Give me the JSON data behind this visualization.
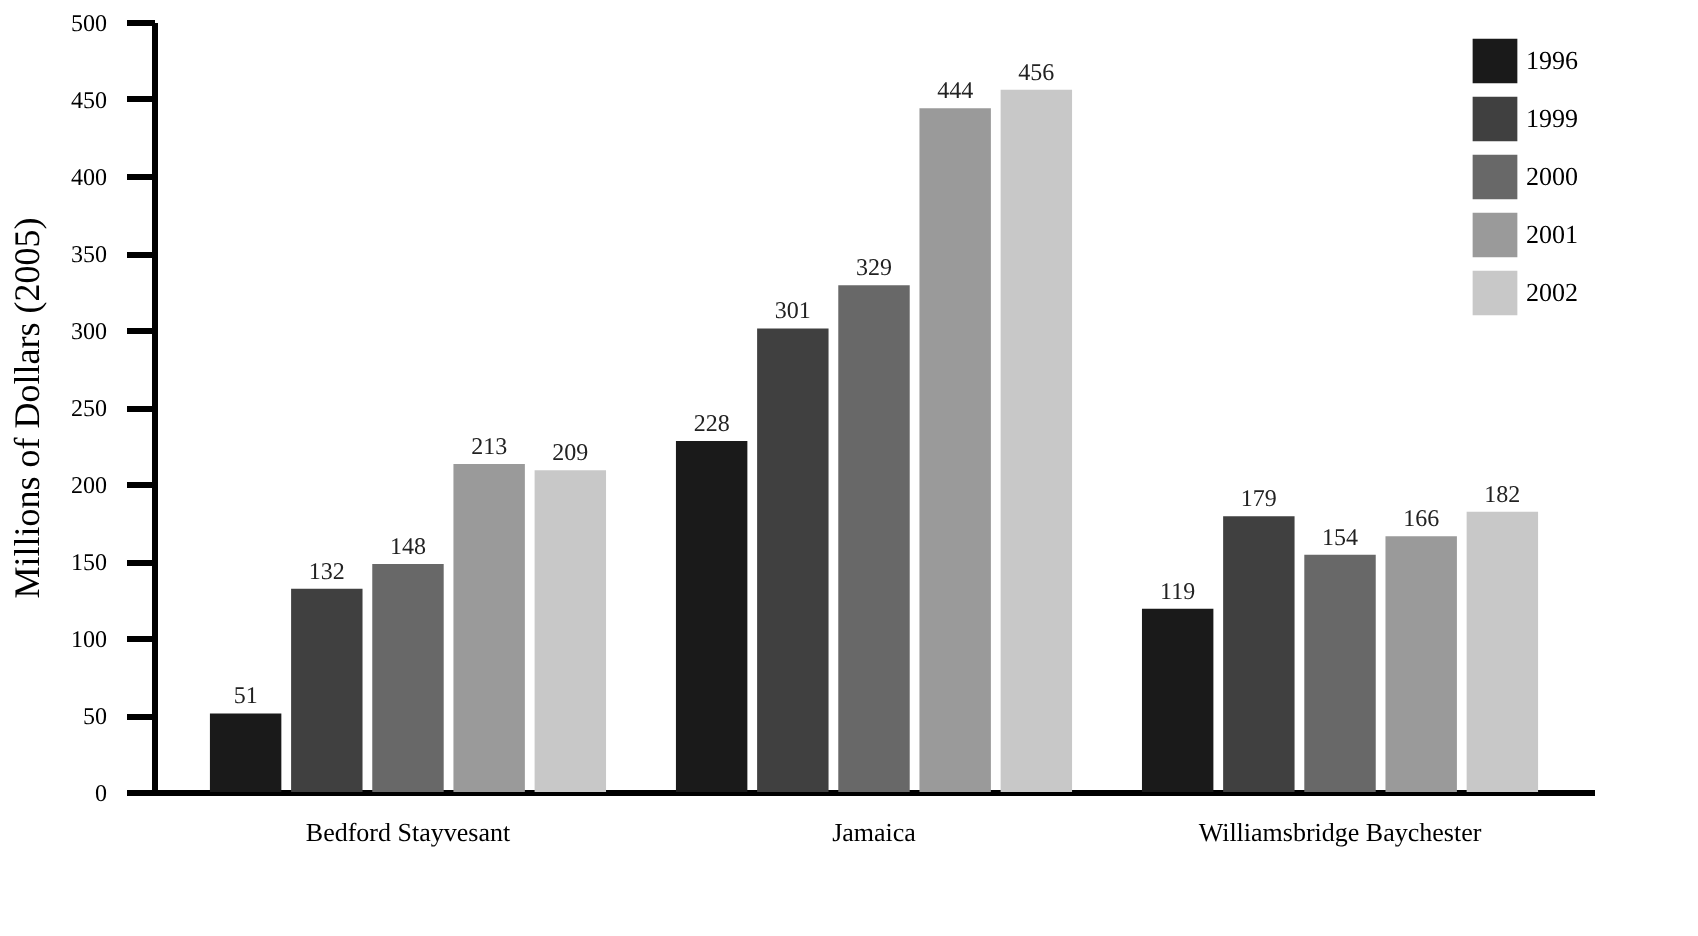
{
  "chart_data": {
    "type": "bar",
    "ylabel": "Millions of Dollars (2005)",
    "categories": [
      "Bedford Stayvesant",
      "Jamaica",
      "Williamsbridge Baychester"
    ],
    "series": [
      {
        "name": "1996",
        "color": "#1a1a1a",
        "values": [
          51,
          228,
          119
        ]
      },
      {
        "name": "1999",
        "color": "#404040",
        "values": [
          132,
          301,
          179
        ]
      },
      {
        "name": "2000",
        "color": "#686868",
        "values": [
          148,
          329,
          154
        ]
      },
      {
        "name": "2001",
        "color": "#9a9a9a",
        "values": [
          213,
          444,
          166
        ]
      },
      {
        "name": "2002",
        "color": "#c8c8c8",
        "values": [
          209,
          456,
          182
        ]
      }
    ],
    "ylim": [
      0,
      500
    ],
    "yticks": [
      0,
      50,
      100,
      150,
      200,
      250,
      300,
      350,
      400,
      450,
      500
    ],
    "data_labels": true,
    "grid": false,
    "legend": "top right"
  }
}
